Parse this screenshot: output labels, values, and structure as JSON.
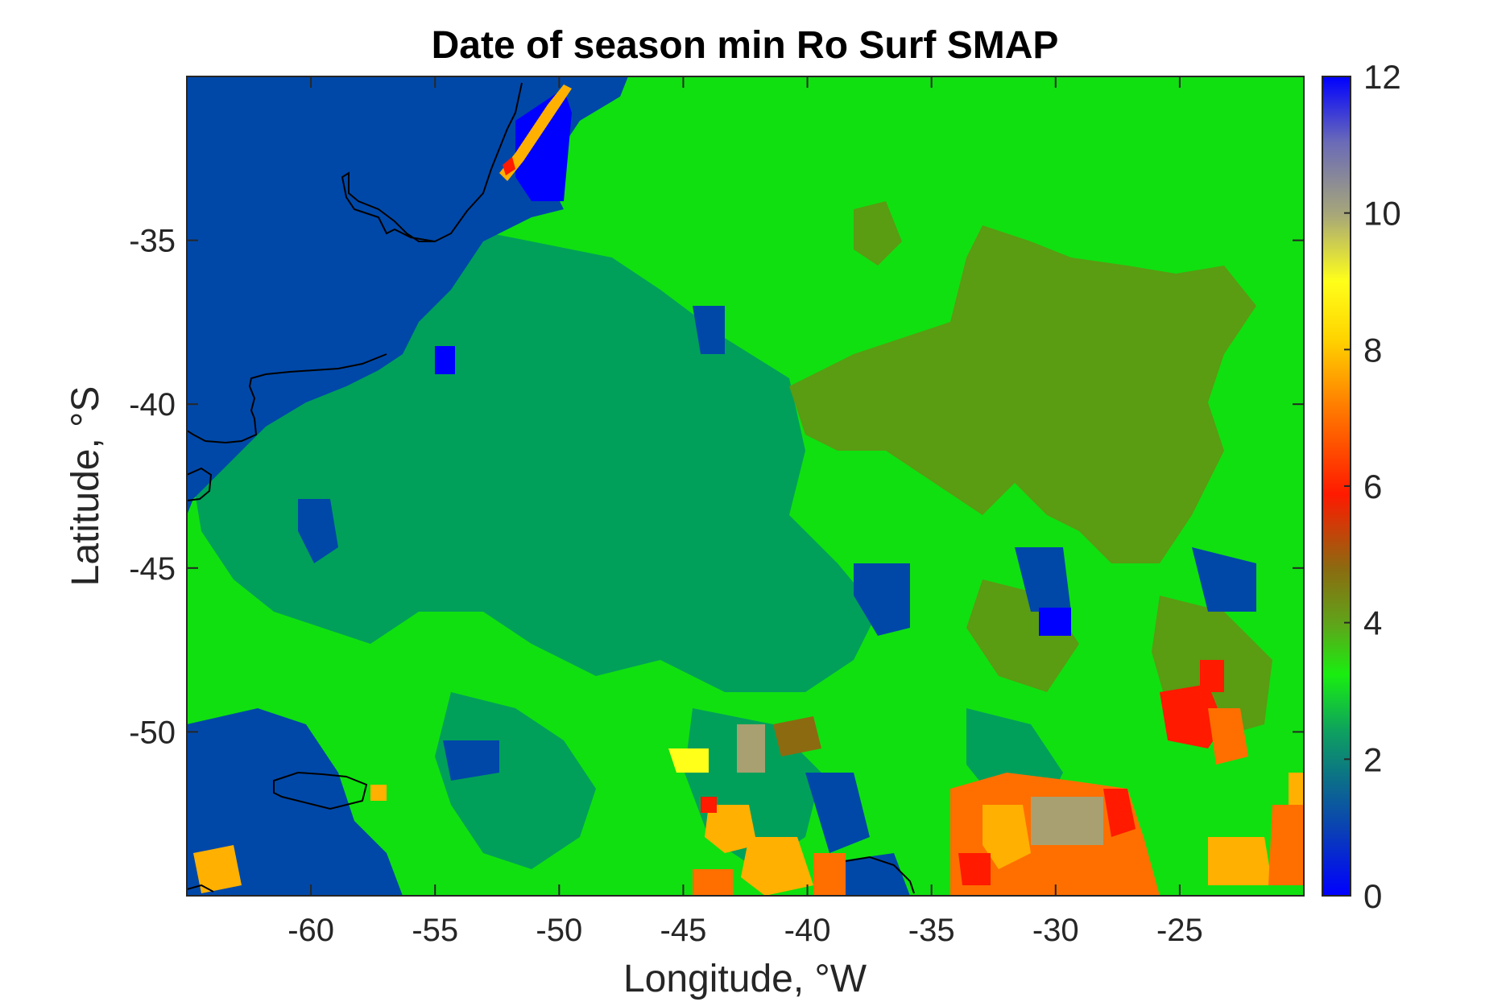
{
  "chart_data": {
    "type": "heatmap",
    "title": "Date of season min Ro Surf SMAP",
    "xlabel": "Longitude, °W",
    "ylabel": "Latitude, °S",
    "xlim": [
      -65,
      -20
    ],
    "ylim": [
      -55,
      -30
    ],
    "x_ticks": [
      -60,
      -55,
      -50,
      -45,
      -40,
      -35,
      -30,
      -25
    ],
    "x_tick_labels": [
      "-60",
      "-55",
      "-50",
      "-45",
      "-40",
      "-35",
      "-30",
      "-25"
    ],
    "y_ticks": [
      -35,
      -40,
      -45,
      -50
    ],
    "y_tick_labels": [
      "-35",
      "-40",
      "-45",
      "-50"
    ],
    "colorbar": {
      "range": [
        0,
        12
      ],
      "ticks": [
        0,
        2,
        4,
        6,
        8,
        10,
        12
      ],
      "tick_labels": [
        "0",
        "2",
        "4",
        "6",
        "8",
        "10",
        "12"
      ],
      "colormap": [
        "#0000ff",
        "#0a40b5",
        "#0c6e8a",
        "#0ea060",
        "#19ee10",
        "#5ea61a",
        "#8c6a10",
        "#ff1a00",
        "#ff7f00",
        "#ffd400",
        "#ffff1a",
        "#a8a878",
        "#6a6ab8",
        "#0000ff"
      ]
    },
    "regions": [
      {
        "name": "land",
        "color": "#0048a8"
      },
      {
        "name": "month-2",
        "color": "#00a05a"
      },
      {
        "name": "month-3",
        "color": "#10e010"
      },
      {
        "name": "month-4",
        "color": "#5a9c12"
      },
      {
        "name": "month-7",
        "color": "#ff6f00"
      },
      {
        "name": "month-8",
        "color": "#ffb000"
      },
      {
        "name": "month-10",
        "color": "#a8a070"
      }
    ]
  }
}
